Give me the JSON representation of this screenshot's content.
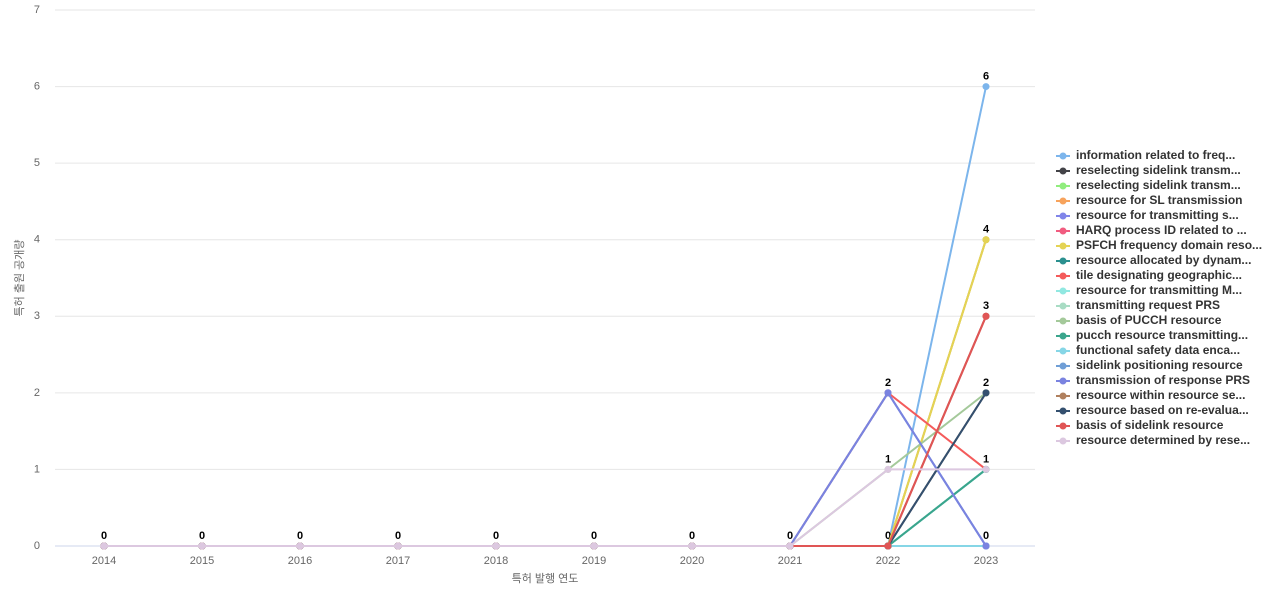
{
  "chart_data": {
    "type": "line",
    "xlabel": "특허 발행 연도",
    "ylabel": "특허 출원 공개량",
    "categories": [
      "2014",
      "2015",
      "2016",
      "2017",
      "2018",
      "2019",
      "2020",
      "2021",
      "2022",
      "2023"
    ],
    "ylim": [
      0,
      7
    ],
    "yticks": [
      0,
      1,
      2,
      3,
      4,
      5,
      6,
      7
    ],
    "grid": true,
    "legend": "right",
    "series": [
      {
        "name": "information related to freq...",
        "color": "#7cb5ec",
        "values": [
          0,
          0,
          0,
          0,
          0,
          0,
          0,
          0,
          0,
          6
        ]
      },
      {
        "name": "reselecting sidelink transm...",
        "color": "#434348",
        "values": [
          0,
          0,
          0,
          0,
          0,
          0,
          0,
          0,
          0,
          2
        ]
      },
      {
        "name": "reselecting sidelink transm...",
        "color": "#90ed7d",
        "values": [
          0,
          0,
          0,
          0,
          0,
          0,
          0,
          0,
          0,
          4
        ]
      },
      {
        "name": "resource for SL transmission",
        "color": "#f7a35c",
        "values": [
          0,
          0,
          0,
          0,
          0,
          0,
          0,
          0,
          0,
          4
        ]
      },
      {
        "name": "resource for transmitting s...",
        "color": "#8085e9",
        "values": [
          0,
          0,
          0,
          0,
          0,
          0,
          0,
          0,
          2,
          0
        ]
      },
      {
        "name": "HARQ process ID related to ...",
        "color": "#f15c80",
        "values": [
          0,
          0,
          0,
          0,
          0,
          0,
          0,
          0,
          0,
          3
        ]
      },
      {
        "name": "PSFCH frequency domain reso...",
        "color": "#e4d354",
        "values": [
          0,
          0,
          0,
          0,
          0,
          0,
          0,
          0,
          0,
          4
        ]
      },
      {
        "name": "resource allocated by dynam...",
        "color": "#2b908f",
        "values": [
          0,
          0,
          0,
          0,
          0,
          0,
          0,
          0,
          0,
          1
        ]
      },
      {
        "name": "tile designating geographic...",
        "color": "#f45b5b",
        "values": [
          0,
          0,
          0,
          0,
          0,
          0,
          0,
          0,
          2,
          1
        ]
      },
      {
        "name": "resource for transmitting M...",
        "color": "#91e8e1",
        "values": [
          0,
          0,
          0,
          0,
          0,
          0,
          0,
          0,
          0,
          1
        ]
      },
      {
        "name": "transmitting request PRS",
        "color": "#a8dcc4",
        "values": [
          0,
          0,
          0,
          0,
          0,
          0,
          0,
          0,
          0,
          0
        ]
      },
      {
        "name": "basis of PUCCH resource",
        "color": "#a4c99a",
        "values": [
          0,
          0,
          0,
          0,
          0,
          0,
          0,
          0,
          1,
          2
        ]
      },
      {
        "name": "pucch resource transmitting...",
        "color": "#3aa58c",
        "values": [
          0,
          0,
          0,
          0,
          0,
          0,
          0,
          0,
          0,
          1
        ]
      },
      {
        "name": "functional safety data enca...",
        "color": "#86d6e6",
        "values": [
          0,
          0,
          0,
          0,
          0,
          0,
          0,
          0,
          0,
          0
        ]
      },
      {
        "name": "sidelink positioning resource",
        "color": "#6f9ed6",
        "values": [
          0,
          0,
          0,
          0,
          0,
          0,
          0,
          0,
          2,
          0
        ]
      },
      {
        "name": "transmission of response PRS",
        "color": "#7a83e0",
        "values": [
          0,
          0,
          0,
          0,
          0,
          0,
          0,
          0,
          2,
          0
        ]
      },
      {
        "name": "resource within resource se...",
        "color": "#b0805e",
        "values": [
          0,
          0,
          0,
          0,
          0,
          0,
          0,
          0,
          0,
          3
        ]
      },
      {
        "name": "resource based on re-evalua...",
        "color": "#34506f",
        "values": [
          0,
          0,
          0,
          0,
          0,
          0,
          0,
          0,
          0,
          2
        ]
      },
      {
        "name": "basis of sidelink resource",
        "color": "#e05555",
        "values": [
          0,
          0,
          0,
          0,
          0,
          0,
          0,
          0,
          0,
          3
        ]
      },
      {
        "name": "resource determined by rese...",
        "color": "#dcc8e0",
        "values": [
          0,
          0,
          0,
          0,
          0,
          0,
          0,
          0,
          1,
          1
        ]
      }
    ]
  }
}
